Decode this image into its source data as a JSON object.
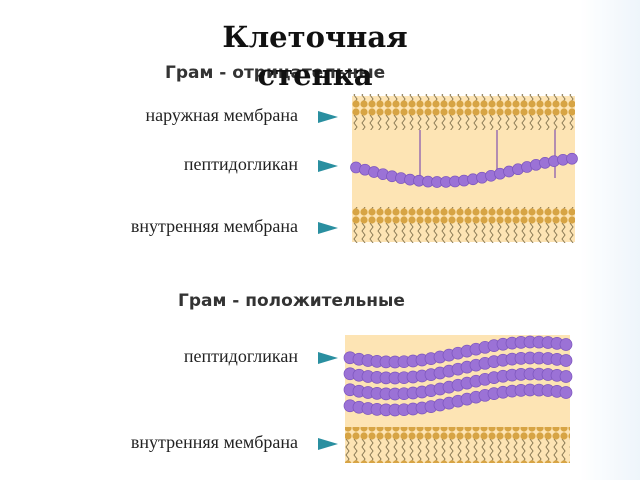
{
  "title": "Клеточная стенка",
  "gram_negative": {
    "heading": "Грам - отрицательные",
    "labels": [
      "наружная мембрана",
      "пептидогликан",
      "внутренняя мембрана"
    ]
  },
  "gram_positive": {
    "heading": "Грам - положительные",
    "labels": [
      "пептидогликан",
      "внутренняя мембрана"
    ]
  }
}
